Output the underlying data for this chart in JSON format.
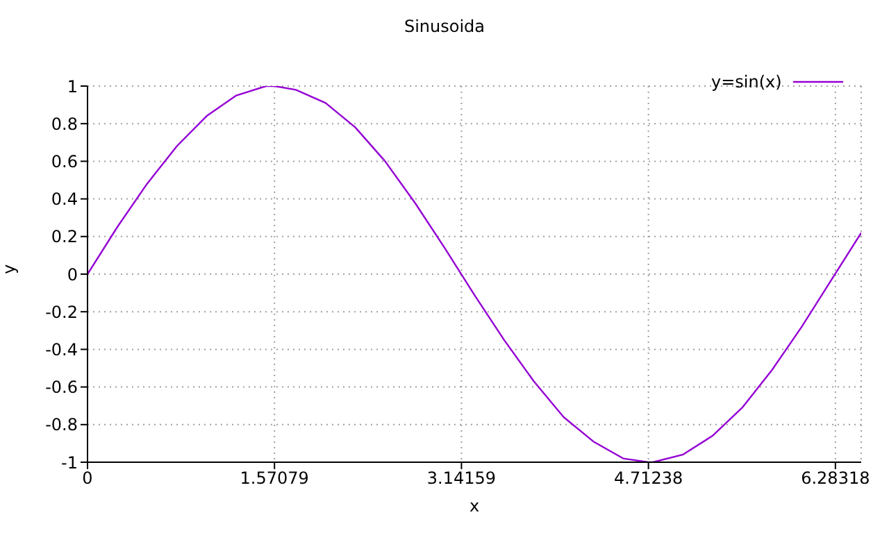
{
  "chart_data": {
    "type": "line",
    "title": "Sinusoida",
    "xlabel": "x",
    "ylabel": "y",
    "x": [
      0,
      0.25,
      0.5,
      0.75,
      1,
      1.25,
      1.5,
      1.57079,
      1.75,
      2,
      2.25,
      2.5,
      2.75,
      3,
      3.25,
      3.5,
      3.75,
      4,
      4.25,
      4.5,
      4.71238,
      4.75,
      5,
      5.25,
      5.5,
      5.75,
      6,
      6.25,
      6.5
    ],
    "series": [
      {
        "name": "y=sin(x)",
        "color": "#9400d3",
        "values": [
          0,
          0.25,
          0.48,
          0.68,
          0.84,
          0.95,
          1.0,
          1,
          0.98,
          0.91,
          0.78,
          0.6,
          0.38,
          0.14,
          -0.11,
          -0.35,
          -0.57,
          -0.76,
          -0.89,
          -0.98,
          -1,
          -1.0,
          -0.96,
          -0.86,
          -0.71,
          -0.51,
          -0.28,
          -0.03,
          0.22
        ]
      }
    ],
    "xlim": [
      0,
      6.5
    ],
    "xticks": [
      0,
      1.57079,
      3.14159,
      4.71238,
      6.28318
    ],
    "ylim": [
      -1,
      1
    ],
    "yticks": [
      -1,
      -0.8,
      -0.6,
      -0.4,
      -0.2,
      0,
      0.2,
      0.4,
      0.6,
      0.8,
      1
    ],
    "grid": true,
    "legend": "top right",
    "marker": "none",
    "line_style": "solid"
  }
}
